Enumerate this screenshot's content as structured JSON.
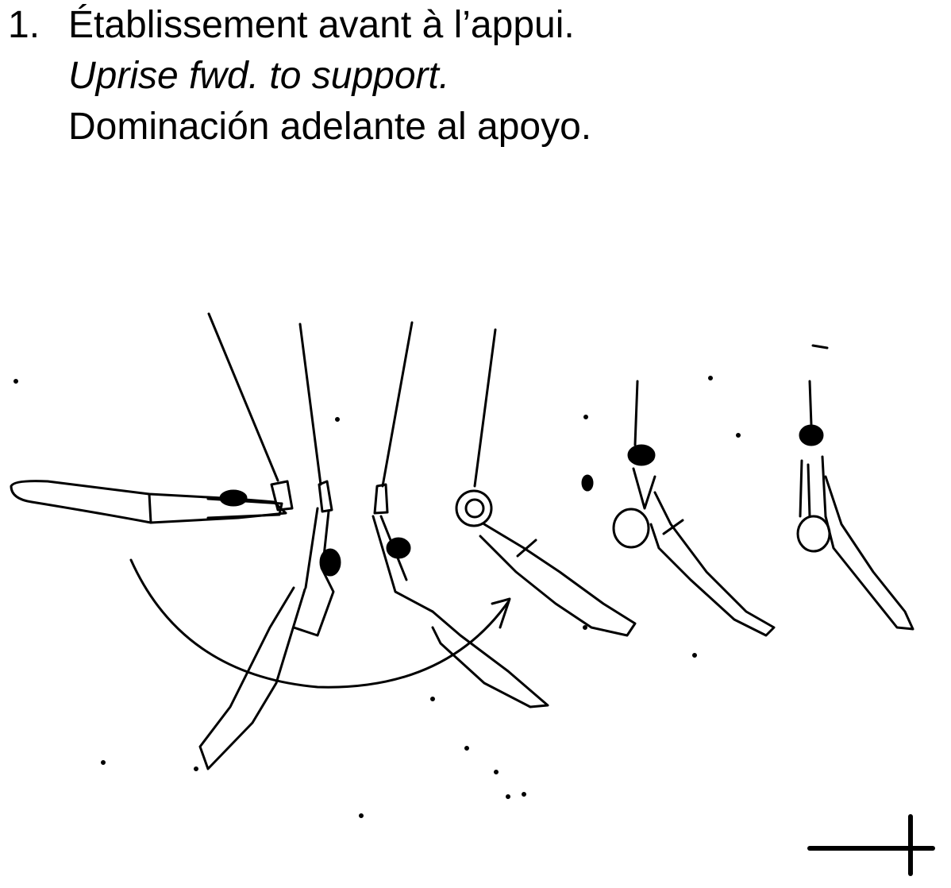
{
  "element": {
    "number": "1.",
    "name_fr": "Établissement avant à l’appui.",
    "name_en": "Uprise fwd. to support.",
    "name_es": "Dominación adelante al apoyo."
  },
  "figure": {
    "subject": "gymnast on rings",
    "phases": 6,
    "icons": [
      "swing-arc-arrow",
      "rings-symbol"
    ]
  }
}
